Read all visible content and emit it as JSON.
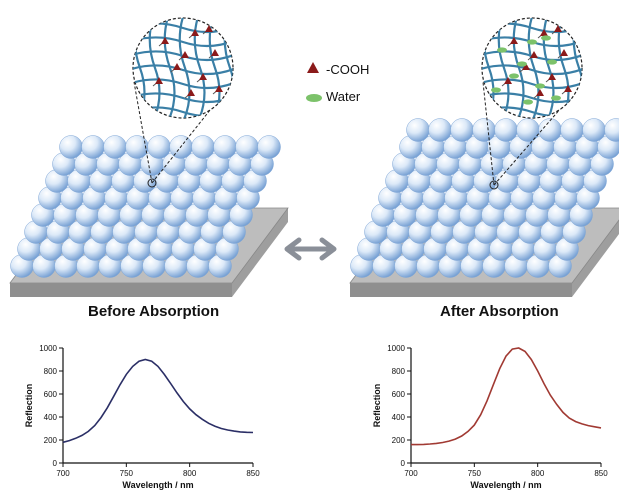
{
  "panels": [
    {
      "id": "before",
      "title": "Before Absorption"
    },
    {
      "id": "after",
      "title": "After Absorption"
    }
  ],
  "legend": [
    {
      "label": "-COOH",
      "symbol": "triangle",
      "color": "#8b1a1a"
    },
    {
      "label": "Water",
      "symbol": "ellipse",
      "color": "#7cc26a"
    }
  ],
  "colors": {
    "sphere_light": "#f2f7fd",
    "sphere_dark": "#6f9bd1",
    "substrate": "#bdbdbd",
    "network": "#3a7fa6",
    "arrow": "#8a8f98"
  },
  "chart_data": [
    {
      "type": "line",
      "xlabel": "Wavelength / nm",
      "ylabel": "Reflection",
      "xlim": [
        700,
        850
      ],
      "ylim": [
        0,
        1000
      ],
      "xticks": [
        700,
        750,
        800,
        850
      ],
      "yticks": [
        0,
        200,
        400,
        600,
        800,
        1000
      ],
      "series": [
        {
          "color": "#2b2f66",
          "x": [
            700,
            705,
            710,
            715,
            720,
            725,
            730,
            735,
            740,
            745,
            750,
            755,
            760,
            765,
            770,
            775,
            780,
            785,
            790,
            795,
            800,
            805,
            810,
            815,
            820,
            825,
            830,
            835,
            840,
            845,
            850
          ],
          "y": [
            180,
            195,
            215,
            240,
            275,
            325,
            395,
            480,
            580,
            680,
            770,
            840,
            885,
            900,
            885,
            840,
            770,
            690,
            610,
            535,
            470,
            420,
            380,
            345,
            320,
            300,
            287,
            277,
            270,
            267,
            265
          ]
        }
      ]
    },
    {
      "type": "line",
      "xlabel": "Wavelength / nm",
      "ylabel": "Reflection",
      "xlim": [
        700,
        850
      ],
      "ylim": [
        0,
        1000
      ],
      "xticks": [
        700,
        750,
        800,
        850
      ],
      "yticks": [
        0,
        200,
        400,
        600,
        800,
        1000
      ],
      "series": [
        {
          "color": "#a13a33",
          "x": [
            700,
            705,
            710,
            715,
            720,
            725,
            730,
            735,
            740,
            745,
            750,
            755,
            760,
            765,
            770,
            775,
            780,
            785,
            790,
            795,
            800,
            805,
            810,
            815,
            820,
            825,
            830,
            835,
            840,
            845,
            850
          ],
          "y": [
            160,
            160,
            162,
            165,
            170,
            178,
            190,
            208,
            235,
            275,
            330,
            420,
            540,
            680,
            820,
            930,
            990,
            1000,
            970,
            900,
            800,
            690,
            590,
            510,
            440,
            390,
            360,
            340,
            325,
            315,
            305
          ]
        }
      ]
    }
  ]
}
